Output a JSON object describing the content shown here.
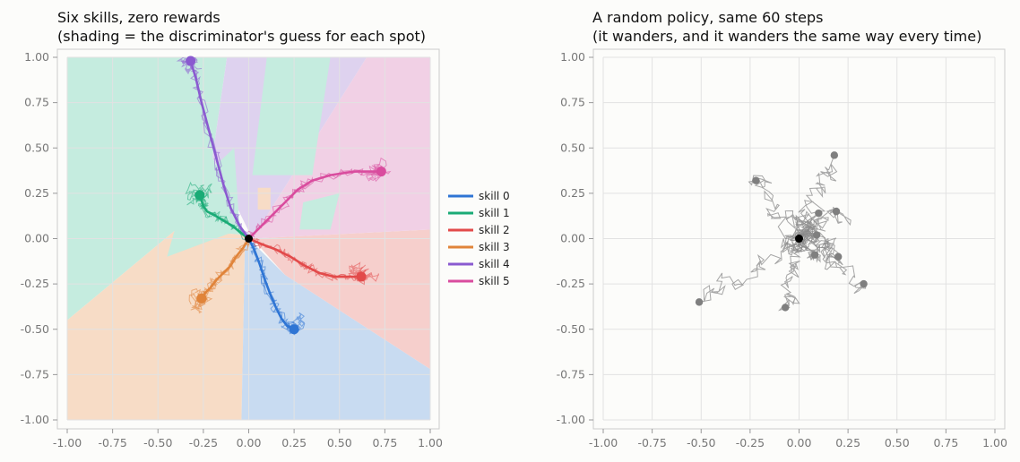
{
  "chart_data": [
    {
      "type": "line",
      "title": "Six skills, zero rewards",
      "subtitle": "(shading = the discriminator's guess for each spot)",
      "xlabel": "",
      "ylabel": "",
      "xlim": [
        -1.0,
        1.0
      ],
      "ylim": [
        -1.0,
        1.0
      ],
      "xticks": [
        "-1.00",
        "-0.75",
        "-0.50",
        "-0.25",
        "0.00",
        "0.25",
        "0.50",
        "0.75",
        "1.00"
      ],
      "yticks": [
        "1.00",
        "0.75",
        "0.50",
        "0.25",
        "0.00",
        "-0.25",
        "-0.50",
        "-0.75",
        "-1.00"
      ],
      "grid": true,
      "legend_position": "right",
      "start": [
        0.0,
        0.0
      ],
      "series": [
        {
          "name": "skill 0",
          "color": "#2f75d4",
          "region_color": "#c8dbf1",
          "end": [
            0.25,
            -0.5
          ],
          "path": [
            [
              0,
              0
            ],
            [
              0.03,
              -0.06
            ],
            [
              0.06,
              -0.14
            ],
            [
              0.09,
              -0.23
            ],
            [
              0.12,
              -0.31
            ],
            [
              0.15,
              -0.38
            ],
            [
              0.18,
              -0.44
            ],
            [
              0.21,
              -0.48
            ],
            [
              0.25,
              -0.5
            ]
          ]
        },
        {
          "name": "skill 1",
          "color": "#1aab76",
          "region_color": "#c5ecdf",
          "end": [
            -0.27,
            0.24
          ],
          "path": [
            [
              0,
              0
            ],
            [
              -0.04,
              0.03
            ],
            [
              -0.09,
              0.07
            ],
            [
              -0.14,
              0.1
            ],
            [
              -0.19,
              0.13
            ],
            [
              -0.23,
              0.15
            ],
            [
              -0.25,
              0.18
            ],
            [
              -0.26,
              0.21
            ],
            [
              -0.27,
              0.24
            ]
          ]
        },
        {
          "name": "skill 2",
          "color": "#e24a4a",
          "region_color": "#f6cfcc",
          "end": [
            0.62,
            -0.21
          ],
          "path": [
            [
              0,
              0
            ],
            [
              0.07,
              -0.03
            ],
            [
              0.15,
              -0.06
            ],
            [
              0.23,
              -0.1
            ],
            [
              0.31,
              -0.15
            ],
            [
              0.39,
              -0.19
            ],
            [
              0.47,
              -0.21
            ],
            [
              0.55,
              -0.21
            ],
            [
              0.62,
              -0.21
            ]
          ]
        },
        {
          "name": "skill 3",
          "color": "#e0843a",
          "region_color": "#f7dcc6",
          "end": [
            -0.26,
            -0.33
          ],
          "path": [
            [
              0,
              0
            ],
            [
              -0.03,
              -0.05
            ],
            [
              -0.07,
              -0.1
            ],
            [
              -0.1,
              -0.15
            ],
            [
              -0.14,
              -0.19
            ],
            [
              -0.18,
              -0.23
            ],
            [
              -0.21,
              -0.27
            ],
            [
              -0.24,
              -0.3
            ],
            [
              -0.26,
              -0.33
            ]
          ]
        },
        {
          "name": "skill 4",
          "color": "#8a5ad0",
          "region_color": "#ded2ef",
          "end": [
            -0.32,
            0.98
          ],
          "path": [
            [
              0,
              0
            ],
            [
              -0.05,
              0.07
            ],
            [
              -0.1,
              0.17
            ],
            [
              -0.14,
              0.3
            ],
            [
              -0.18,
              0.45
            ],
            [
              -0.22,
              0.6
            ],
            [
              -0.26,
              0.75
            ],
            [
              -0.29,
              0.88
            ],
            [
              -0.32,
              0.98
            ]
          ]
        },
        {
          "name": "skill 5",
          "color": "#d94c9e",
          "region_color": "#f1d0e5",
          "end": [
            0.73,
            0.37
          ],
          "path": [
            [
              0,
              0
            ],
            [
              0.06,
              0.06
            ],
            [
              0.13,
              0.13
            ],
            [
              0.2,
              0.2
            ],
            [
              0.27,
              0.27
            ],
            [
              0.35,
              0.32
            ],
            [
              0.45,
              0.35
            ],
            [
              0.58,
              0.37
            ],
            [
              0.73,
              0.37
            ]
          ]
        }
      ]
    },
    {
      "type": "line",
      "title": "A random policy, same 60 steps",
      "subtitle": "(it wanders, and it wanders the same way every time)",
      "xlabel": "",
      "ylabel": "",
      "xlim": [
        -1.0,
        1.0
      ],
      "ylim": [
        -1.0,
        1.0
      ],
      "xticks": [
        "-1.00",
        "-0.75",
        "-0.50",
        "-0.25",
        "0.00",
        "0.25",
        "0.50",
        "0.75",
        "1.00"
      ],
      "yticks": [
        "1.00",
        "0.75",
        "0.50",
        "0.25",
        "0.00",
        "-0.25",
        "-0.50",
        "-0.75",
        "-1.00"
      ],
      "grid": true,
      "start": [
        0.0,
        0.0
      ],
      "color": "#8a8a8a",
      "endpoints": [
        [
          0.18,
          0.46
        ],
        [
          -0.22,
          0.32
        ],
        [
          0.1,
          0.14
        ],
        [
          0.19,
          0.15
        ],
        [
          0.09,
          0.02
        ],
        [
          0.2,
          -0.1
        ],
        [
          0.08,
          -0.09
        ],
        [
          0.33,
          -0.25
        ],
        [
          -0.07,
          -0.38
        ],
        [
          -0.51,
          -0.35
        ]
      ]
    }
  ]
}
